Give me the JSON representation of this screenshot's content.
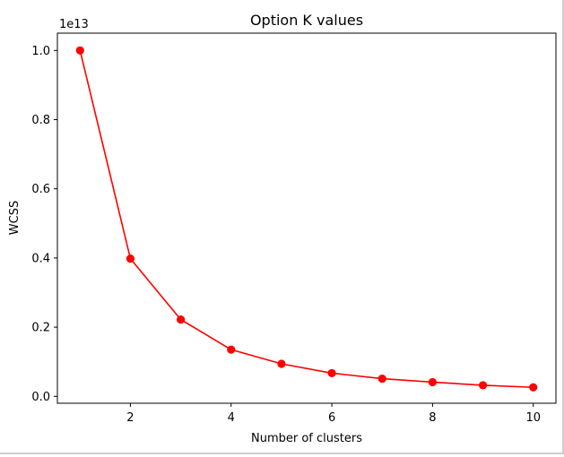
{
  "chart_data": {
    "type": "line",
    "title": "Option K values",
    "xlabel": "Number of clusters",
    "ylabel": "WCSS",
    "y_offset_label": "1e13",
    "xlim": [
      0.55,
      10.45
    ],
    "ylim": [
      -0.02,
      1.05
    ],
    "x_ticks": [
      2,
      4,
      6,
      8,
      10
    ],
    "y_ticks": [
      0.0,
      0.2,
      0.4,
      0.6,
      0.8,
      1.0
    ],
    "x_tick_labels": [
      "2",
      "4",
      "6",
      "8",
      "10"
    ],
    "y_tick_labels": [
      "0.0",
      "0.2",
      "0.4",
      "0.6",
      "0.8",
      "1.0"
    ],
    "grid": false,
    "series": [
      {
        "color": "#ff0000",
        "marker": "circle",
        "x": [
          1,
          2,
          3,
          4,
          5,
          6,
          7,
          8,
          9,
          10
        ],
        "y": [
          1.0,
          0.398,
          0.222,
          0.135,
          0.094,
          0.067,
          0.051,
          0.041,
          0.032,
          0.026
        ]
      }
    ]
  }
}
